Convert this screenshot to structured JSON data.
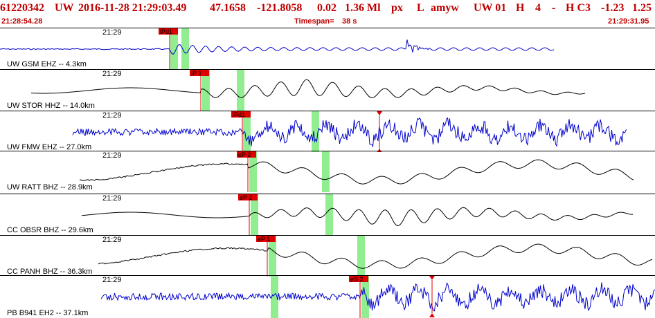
{
  "header": {
    "event_id": "61220342",
    "network": "UW",
    "datetime": "2016-11-28 21:29:03.49",
    "lat": "47.1658",
    "lon": "-121.8058",
    "depth": "0.02",
    "magnitude": "1.36 Ml",
    "mag_type": "px",
    "event_type": "L",
    "author": "amyw",
    "net_code": "UW 01",
    "quality": "H",
    "count": "4",
    "dash": "-",
    "class": "H C3",
    "val1": "-1.23",
    "val2": "1.25"
  },
  "timebar": {
    "start": "21:28:54.28",
    "timespan_label": "Timespan=",
    "timespan_value": "38 s",
    "end": "21:29:31.95"
  },
  "colors": {
    "header_text": "#c00000",
    "trace_blue": "#0000cc",
    "trace_black": "#000000",
    "pick_marker": "#e00000",
    "window_green": "#90ee90"
  },
  "panels": [
    {
      "time_label": "21:29",
      "station": "UW GSM EHZ -- 4.3km",
      "trace_color": "blue",
      "pick_label": "iPd1",
      "trace_style": "burst"
    },
    {
      "time_label": "21:29",
      "station": "UW STOR HHZ -- 14.0km",
      "trace_color": "black",
      "pick_label": "iP 1",
      "trace_style": "wave"
    },
    {
      "time_label": "21:29",
      "station": "UW FMW EHZ -- 27.0km",
      "trace_color": "blue",
      "pick_label": "iPd1",
      "trace_style": "noisy",
      "amp_marker": true
    },
    {
      "time_label": "21:29",
      "station": "UW RATT BHZ -- 28.9km",
      "trace_color": "black",
      "pick_label": "eP 2",
      "trace_style": "long"
    },
    {
      "time_label": "21:29",
      "station": "CC OBSR BHZ -- 29.6km",
      "trace_color": "black",
      "pick_label": "eP 2",
      "trace_style": "wave"
    },
    {
      "time_label": "21:29",
      "station": "CC PANH BHZ -- 36.3km",
      "trace_color": "black",
      "pick_label": "eP 1",
      "trace_style": "long"
    },
    {
      "time_label": "21:29",
      "station": "PB B941 EH2 -- 37.1km",
      "trace_color": "blue",
      "pick_label": "eS 2",
      "trace_style": "noisy",
      "amp_marker": true
    }
  ]
}
